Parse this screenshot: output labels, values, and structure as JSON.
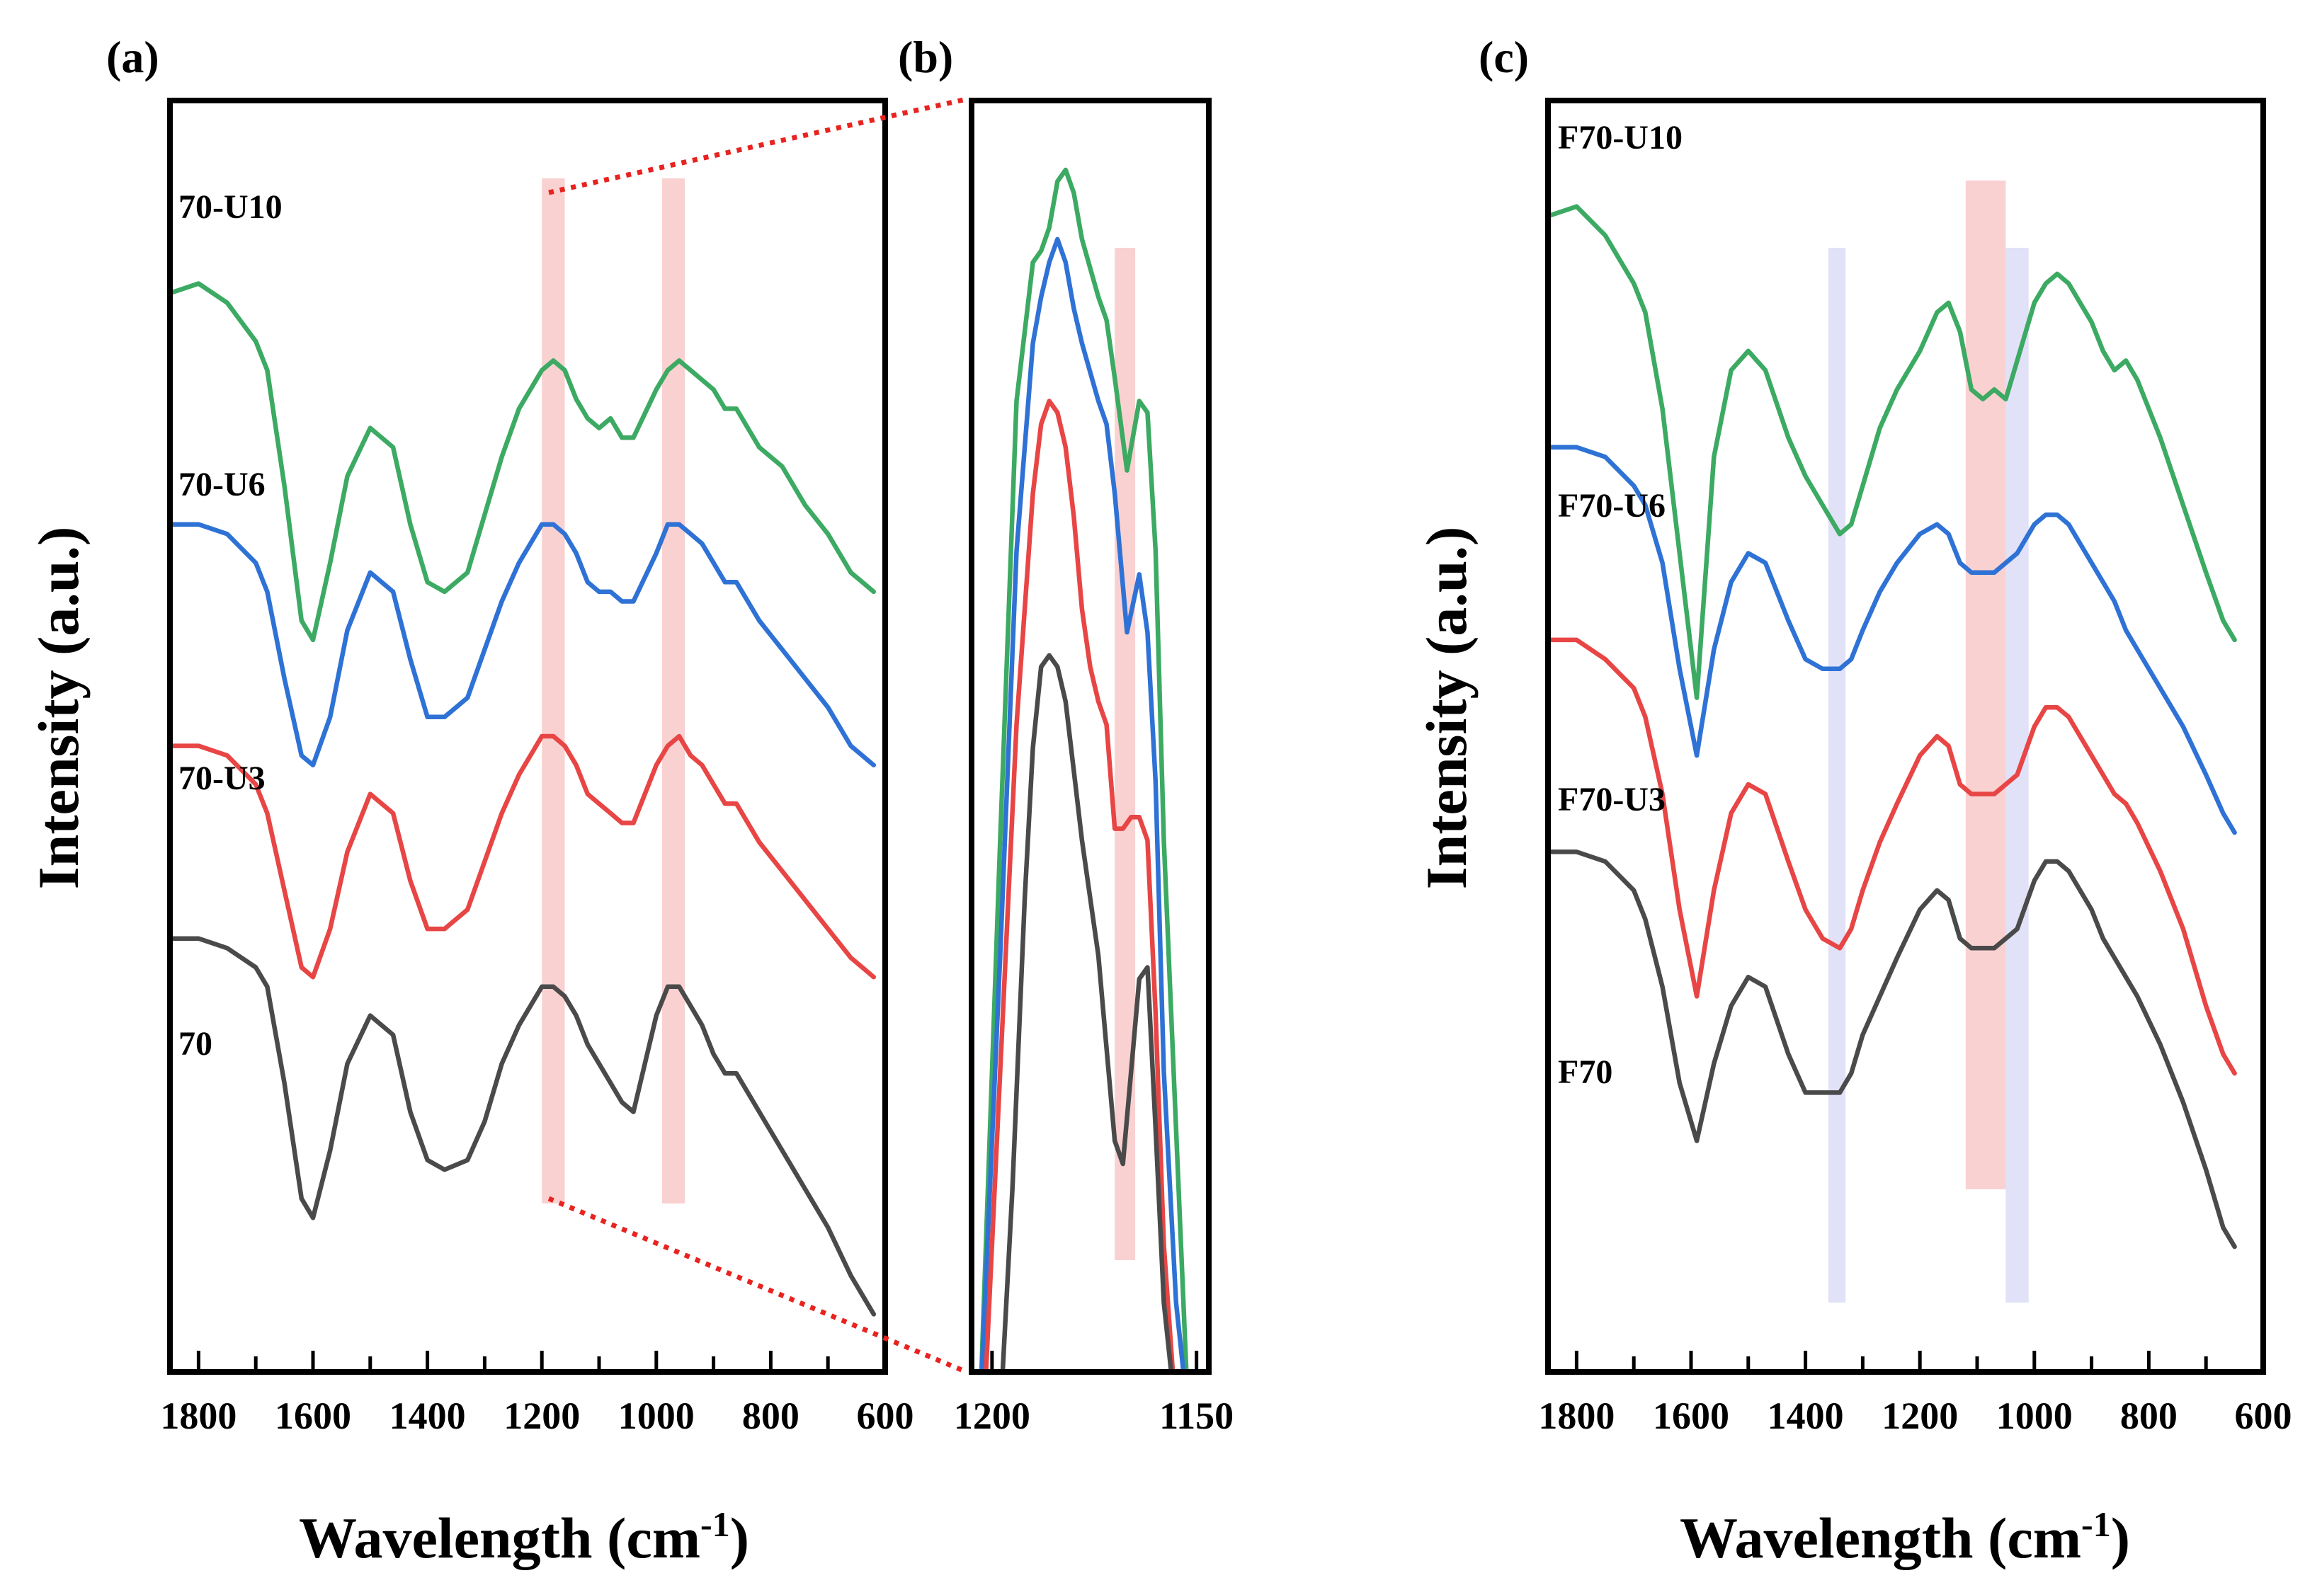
{
  "chart_data": [
    {
      "panel": "(a)",
      "type": "line",
      "xlabel": "Wavelength (cm",
      "xlabel_sup": "-1",
      "xlabel_close": ")",
      "ylabel": "Intensity (a.u.)",
      "xlim": [
        1850,
        600
      ],
      "xticks": [
        1800,
        1600,
        1400,
        1200,
        1000,
        800,
        600
      ],
      "y_ticks_shown": false,
      "highlight_bands": [
        {
          "from": 1200,
          "to": 1160,
          "color": "#f9c9c9"
        },
        {
          "from": 990,
          "to": 950,
          "color": "#f9c9c9"
        }
      ],
      "series": [
        {
          "name": "70-U10",
          "color": "#3caa63",
          "x": [
            1850,
            1800,
            1750,
            1700,
            1680,
            1650,
            1620,
            1600,
            1570,
            1540,
            1500,
            1460,
            1430,
            1400,
            1370,
            1330,
            1300,
            1270,
            1240,
            1200,
            1180,
            1160,
            1140,
            1120,
            1100,
            1080,
            1060,
            1040,
            1000,
            980,
            960,
            940,
            920,
            900,
            880,
            860,
            820,
            780,
            740,
            700,
            660,
            640,
            620
          ],
          "y": [
            82,
            83,
            81,
            77,
            74,
            62,
            48,
            46,
            54,
            63,
            68,
            66,
            58,
            52,
            51,
            53,
            59,
            65,
            70,
            74,
            75,
            74,
            71,
            69,
            68,
            69,
            67,
            67,
            72,
            74,
            75,
            74,
            73,
            72,
            70,
            70,
            66,
            64,
            60,
            57,
            53,
            52,
            51
          ]
        },
        {
          "name": "70-U6",
          "color": "#2f72d5",
          "x": [
            1850,
            1800,
            1750,
            1700,
            1680,
            1650,
            1620,
            1600,
            1570,
            1540,
            1500,
            1460,
            1430,
            1400,
            1370,
            1330,
            1300,
            1270,
            1240,
            1200,
            1180,
            1160,
            1140,
            1120,
            1100,
            1080,
            1060,
            1040,
            1000,
            980,
            960,
            940,
            920,
            900,
            880,
            860,
            820,
            780,
            740,
            700,
            660,
            640,
            620
          ],
          "y": [
            58,
            58,
            57,
            54,
            51,
            42,
            34,
            33,
            38,
            47,
            53,
            51,
            44,
            38,
            38,
            40,
            45,
            50,
            54,
            58,
            58,
            57,
            55,
            52,
            51,
            51,
            50,
            50,
            55,
            58,
            58,
            57,
            56,
            54,
            52,
            52,
            48,
            45,
            42,
            39,
            35,
            34,
            33
          ]
        },
        {
          "name": "70-U3",
          "color": "#e84545",
          "x": [
            1850,
            1800,
            1750,
            1700,
            1680,
            1650,
            1620,
            1600,
            1570,
            1540,
            1500,
            1460,
            1430,
            1400,
            1370,
            1330,
            1300,
            1270,
            1240,
            1200,
            1180,
            1160,
            1140,
            1120,
            1100,
            1080,
            1060,
            1040,
            1000,
            980,
            960,
            940,
            920,
            900,
            880,
            860,
            820,
            780,
            740,
            700,
            660,
            640,
            620
          ],
          "y": [
            35,
            35,
            34,
            31,
            28,
            20,
            12,
            11,
            16,
            24,
            30,
            28,
            21,
            16,
            16,
            18,
            23,
            28,
            32,
            36,
            36,
            35,
            33,
            30,
            29,
            28,
            27,
            27,
            33,
            35,
            36,
            34,
            33,
            31,
            29,
            29,
            25,
            22,
            19,
            16,
            13,
            12,
            11
          ]
        },
        {
          "name": "70",
          "color": "#4a4a4a",
          "x": [
            1850,
            1800,
            1750,
            1700,
            1680,
            1650,
            1620,
            1600,
            1570,
            1540,
            1500,
            1460,
            1430,
            1400,
            1370,
            1330,
            1300,
            1270,
            1240,
            1200,
            1180,
            1160,
            1140,
            1120,
            1100,
            1080,
            1060,
            1040,
            1000,
            980,
            960,
            940,
            920,
            900,
            880,
            860,
            820,
            780,
            740,
            700,
            660,
            640,
            620
          ],
          "y": [
            15,
            15,
            14,
            12,
            10,
            0,
            -12,
            -14,
            -7,
            2,
            7,
            5,
            -3,
            -8,
            -9,
            -8,
            -4,
            2,
            6,
            10,
            10,
            9,
            7,
            4,
            2,
            0,
            -2,
            -3,
            7,
            10,
            10,
            8,
            6,
            3,
            1,
            1,
            -3,
            -7,
            -11,
            -15,
            -20,
            -22,
            -24
          ]
        }
      ]
    },
    {
      "panel": "(b)",
      "type": "line",
      "xlim": [
        1205,
        1147
      ],
      "xticks": [
        1200,
        1150
      ],
      "y_ticks_shown": false,
      "highlight_bands": [
        {
          "from": 1170,
          "to": 1165,
          "color": "#f9c9c9"
        }
      ],
      "series": [
        {
          "name": "70-U10",
          "color": "#3caa63",
          "x": [
            1203,
            1198,
            1194,
            1190,
            1188,
            1186,
            1184,
            1182,
            1180,
            1178,
            1174,
            1172,
            1170,
            1167,
            1164,
            1162,
            1160,
            1158,
            1155,
            1152,
            1148
          ],
          "y": [
            -10,
            40,
            78,
            90,
            91,
            93,
            97,
            98,
            96,
            92,
            87,
            85,
            80,
            72,
            78,
            77,
            65,
            40,
            15,
            -10,
            -10
          ]
        },
        {
          "name": "70-U6",
          "color": "#2f72d5",
          "x": [
            1203,
            1198,
            1194,
            1190,
            1188,
            1186,
            1184,
            1182,
            1180,
            1178,
            1174,
            1172,
            1170,
            1167,
            1164,
            1162,
            1160,
            1158,
            1155,
            1152,
            1149
          ],
          "y": [
            -10,
            30,
            65,
            83,
            87,
            90,
            92,
            90,
            86,
            83,
            78,
            76,
            70,
            58,
            63,
            58,
            45,
            20,
            0,
            -10,
            -10
          ]
        },
        {
          "name": "70-U3",
          "color": "#e84545",
          "x": [
            1202,
            1198,
            1194,
            1190,
            1188,
            1186,
            1184,
            1182,
            1180,
            1178,
            1176,
            1174,
            1172,
            1170,
            1168,
            1166,
            1164,
            1162,
            1160,
            1158,
            1155,
            1152,
            1150
          ],
          "y": [
            -10,
            20,
            50,
            70,
            76,
            78,
            77,
            74,
            68,
            60,
            55,
            52,
            50,
            41,
            41,
            42,
            42,
            40,
            25,
            5,
            -10,
            -10,
            -10
          ]
        },
        {
          "name": "70",
          "color": "#4a4a4a",
          "x": [
            1198,
            1195,
            1192,
            1190,
            1188,
            1186,
            1184,
            1182,
            1180,
            1178,
            1176,
            1174,
            1172,
            1170,
            1168,
            1166,
            1164,
            1162,
            1160,
            1158,
            1155,
            1152,
            1150
          ],
          "y": [
            -10,
            10,
            35,
            48,
            55,
            56,
            55,
            52,
            46,
            40,
            35,
            30,
            22,
            14,
            12,
            20,
            28,
            29,
            15,
            0,
            -10,
            -10,
            -10
          ]
        }
      ]
    },
    {
      "panel": "(c)",
      "type": "line",
      "xlabel": "Wavelength (cm",
      "xlabel_sup": "-1",
      "xlabel_close": ")",
      "ylabel": "Intensity (a.u.)",
      "xlim": [
        1850,
        600
      ],
      "xticks": [
        1800,
        1600,
        1400,
        1200,
        1000,
        800,
        600
      ],
      "y_ticks_shown": false,
      "highlight_bands": [
        {
          "from": 1360,
          "to": 1330,
          "color": "#dcdcf7"
        },
        {
          "from": 1120,
          "to": 1050,
          "color": "#f9c9c9"
        },
        {
          "from": 1050,
          "to": 1010,
          "color": "#dcdcf7"
        }
      ],
      "series": [
        {
          "name": "F70-U10",
          "color": "#3caa63",
          "x": [
            1850,
            1800,
            1750,
            1700,
            1680,
            1650,
            1620,
            1590,
            1560,
            1530,
            1500,
            1470,
            1430,
            1400,
            1370,
            1340,
            1320,
            1300,
            1270,
            1240,
            1200,
            1170,
            1150,
            1130,
            1110,
            1090,
            1070,
            1050,
            1030,
            1000,
            980,
            960,
            940,
            920,
            900,
            880,
            860,
            840,
            820,
            780,
            740,
            700,
            670,
            650
          ],
          "y": [
            80,
            81,
            78,
            73,
            70,
            60,
            45,
            30,
            55,
            64,
            66,
            64,
            57,
            53,
            50,
            47,
            48,
            52,
            58,
            62,
            66,
            70,
            71,
            68,
            62,
            61,
            62,
            61,
            65,
            71,
            73,
            74,
            73,
            71,
            69,
            66,
            64,
            65,
            63,
            57,
            50,
            43,
            38,
            36
          ]
        },
        {
          "name": "F70-U6",
          "color": "#2f72d5",
          "x": [
            1850,
            1800,
            1750,
            1700,
            1680,
            1650,
            1620,
            1590,
            1560,
            1530,
            1500,
            1470,
            1430,
            1400,
            1370,
            1340,
            1320,
            1300,
            1270,
            1240,
            1200,
            1170,
            1150,
            1130,
            1110,
            1090,
            1070,
            1050,
            1030,
            1000,
            980,
            960,
            940,
            920,
            900,
            880,
            860,
            840,
            820,
            780,
            740,
            700,
            670,
            650
          ],
          "y": [
            56,
            56,
            55,
            52,
            50,
            44,
            33,
            24,
            35,
            42,
            45,
            44,
            38,
            34,
            33,
            33,
            34,
            37,
            41,
            44,
            47,
            48,
            47,
            44,
            43,
            43,
            43,
            44,
            45,
            48,
            49,
            49,
            48,
            46,
            44,
            42,
            40,
            37,
            35,
            31,
            27,
            22,
            18,
            16
          ]
        },
        {
          "name": "F70-U3",
          "color": "#e84545",
          "x": [
            1850,
            1800,
            1750,
            1700,
            1680,
            1650,
            1620,
            1590,
            1560,
            1530,
            1500,
            1470,
            1430,
            1400,
            1370,
            1340,
            1320,
            1300,
            1270,
            1240,
            1200,
            1170,
            1150,
            1130,
            1110,
            1090,
            1070,
            1050,
            1030,
            1000,
            980,
            960,
            940,
            920,
            900,
            880,
            860,
            840,
            820,
            780,
            740,
            700,
            670,
            650
          ],
          "y": [
            36,
            36,
            34,
            31,
            28,
            20,
            8,
            -1,
            10,
            18,
            21,
            20,
            13,
            8,
            5,
            4,
            6,
            10,
            15,
            19,
            24,
            26,
            25,
            21,
            20,
            20,
            20,
            21,
            22,
            27,
            29,
            29,
            28,
            26,
            24,
            22,
            20,
            19,
            17,
            12,
            6,
            -2,
            -7,
            -9
          ]
        },
        {
          "name": "F70",
          "color": "#4a4a4a",
          "x": [
            1850,
            1800,
            1750,
            1700,
            1680,
            1650,
            1620,
            1590,
            1560,
            1530,
            1500,
            1470,
            1430,
            1400,
            1370,
            1340,
            1320,
            1300,
            1270,
            1240,
            1200,
            1170,
            1150,
            1130,
            1110,
            1090,
            1070,
            1050,
            1030,
            1000,
            980,
            960,
            940,
            920,
            900,
            880,
            860,
            840,
            820,
            780,
            740,
            700,
            670,
            650
          ],
          "y": [
            14,
            14,
            13,
            10,
            7,
            0,
            -10,
            -16,
            -8,
            -2,
            1,
            0,
            -7,
            -11,
            -11,
            -11,
            -9,
            -5,
            -1,
            3,
            8,
            10,
            9,
            5,
            4,
            4,
            4,
            5,
            6,
            11,
            13,
            13,
            12,
            10,
            8,
            5,
            3,
            1,
            -1,
            -6,
            -12,
            -19,
            -25,
            -27
          ]
        }
      ]
    }
  ]
}
